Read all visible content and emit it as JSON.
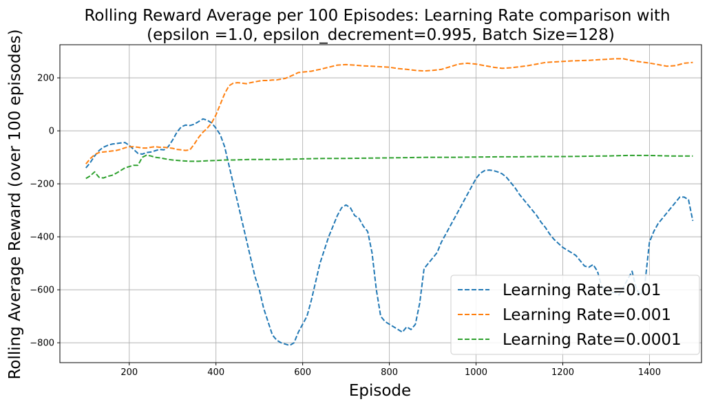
{
  "chart_data": {
    "type": "line",
    "title": "Rolling Reward Average per 100 Episodes: Learning Rate comparison with",
    "subtitle": "(epsilon =1.0, epsilon_decrement=0.995, Batch Size=128)",
    "xlabel": "Episode",
    "ylabel": "Rolling Average Reward (over 100 episodes)",
    "xlim": [
      40,
      1520
    ],
    "ylim": [
      -875,
      325
    ],
    "xticks": [
      200,
      400,
      600,
      800,
      1000,
      1200,
      1400
    ],
    "yticks": [
      -800,
      -600,
      -400,
      -200,
      0,
      200
    ],
    "ytick_labels": [
      "−800",
      "−600",
      "−400",
      "−200",
      "0",
      "200"
    ],
    "grid": true,
    "legend_position": "lower-right",
    "series": [
      {
        "name": "Learning Rate=0.01",
        "color": "#1f77b4",
        "x": [
          100,
          110,
          120,
          130,
          140,
          150,
          160,
          170,
          180,
          190,
          200,
          210,
          220,
          230,
          240,
          250,
          260,
          270,
          280,
          290,
          300,
          310,
          320,
          330,
          340,
          350,
          360,
          370,
          380,
          390,
          400,
          410,
          420,
          430,
          440,
          450,
          460,
          470,
          480,
          490,
          500,
          510,
          520,
          530,
          540,
          550,
          560,
          570,
          580,
          590,
          600,
          610,
          620,
          630,
          640,
          650,
          660,
          670,
          680,
          690,
          700,
          710,
          720,
          730,
          740,
          750,
          760,
          770,
          780,
          790,
          800,
          810,
          820,
          830,
          840,
          850,
          860,
          870,
          880,
          890,
          900,
          910,
          920,
          930,
          940,
          950,
          960,
          970,
          980,
          990,
          1000,
          1010,
          1020,
          1030,
          1040,
          1050,
          1060,
          1070,
          1080,
          1090,
          1100,
          1110,
          1120,
          1130,
          1140,
          1150,
          1160,
          1170,
          1180,
          1190,
          1200,
          1210,
          1220,
          1230,
          1240,
          1250,
          1260,
          1270,
          1280,
          1290,
          1300,
          1310,
          1320,
          1330,
          1340,
          1350,
          1360,
          1370,
          1380,
          1390,
          1400,
          1410,
          1420,
          1430,
          1440,
          1450,
          1460,
          1470,
          1480,
          1490,
          1500
        ],
        "y": [
          -140,
          -120,
          -95,
          -75,
          -62,
          -55,
          -50,
          -48,
          -46,
          -44,
          -55,
          -70,
          -85,
          -88,
          -82,
          -80,
          -75,
          -70,
          -72,
          -60,
          -35,
          -5,
          15,
          22,
          20,
          25,
          35,
          45,
          40,
          30,
          10,
          -15,
          -60,
          -130,
          -200,
          -270,
          -340,
          -410,
          -480,
          -550,
          -600,
          -670,
          -720,
          -770,
          -790,
          -800,
          -805,
          -810,
          -800,
          -760,
          -730,
          -700,
          -640,
          -570,
          -500,
          -450,
          -400,
          -360,
          -320,
          -290,
          -280,
          -290,
          -320,
          -330,
          -360,
          -380,
          -460,
          -600,
          -700,
          -720,
          -730,
          -740,
          -750,
          -760,
          -740,
          -750,
          -730,
          -650,
          -520,
          -500,
          -480,
          -460,
          -420,
          -390,
          -360,
          -330,
          -300,
          -270,
          -240,
          -210,
          -180,
          -160,
          -150,
          -148,
          -150,
          -155,
          -162,
          -175,
          -195,
          -215,
          -240,
          -260,
          -280,
          -300,
          -320,
          -345,
          -365,
          -390,
          -410,
          -425,
          -440,
          -450,
          -460,
          -470,
          -490,
          -510,
          -515,
          -505,
          -530,
          -590,
          -600,
          -610,
          -610,
          -620,
          -590,
          -560,
          -530,
          -600,
          -620,
          -570,
          -420,
          -380,
          -350,
          -330,
          -310,
          -290,
          -270,
          -250,
          -250,
          -260,
          -340
        ]
      },
      {
        "name": "Learning Rate=0.001",
        "color": "#ff7f0e",
        "x": [
          100,
          110,
          120,
          130,
          140,
          150,
          160,
          170,
          180,
          190,
          200,
          210,
          220,
          230,
          240,
          250,
          260,
          270,
          280,
          290,
          300,
          310,
          320,
          330,
          340,
          350,
          360,
          370,
          380,
          390,
          400,
          410,
          420,
          430,
          440,
          450,
          460,
          470,
          480,
          490,
          500,
          510,
          520,
          530,
          540,
          550,
          560,
          570,
          580,
          590,
          600,
          620,
          640,
          660,
          680,
          700,
          720,
          740,
          760,
          780,
          800,
          820,
          840,
          860,
          880,
          900,
          920,
          940,
          960,
          980,
          1000,
          1020,
          1040,
          1060,
          1080,
          1100,
          1120,
          1140,
          1160,
          1180,
          1200,
          1220,
          1240,
          1260,
          1280,
          1300,
          1320,
          1340,
          1360,
          1380,
          1400,
          1420,
          1440,
          1460,
          1480,
          1500
        ],
        "y": [
          -125,
          -105,
          -90,
          -82,
          -80,
          -78,
          -76,
          -74,
          -70,
          -64,
          -60,
          -60,
          -62,
          -65,
          -65,
          -62,
          -60,
          -62,
          -62,
          -64,
          -66,
          -70,
          -72,
          -74,
          -72,
          -50,
          -25,
          -5,
          10,
          30,
          60,
          100,
          140,
          170,
          180,
          182,
          180,
          178,
          182,
          185,
          188,
          190,
          190,
          192,
          192,
          195,
          198,
          205,
          212,
          220,
          222,
          225,
          232,
          240,
          248,
          250,
          248,
          245,
          244,
          242,
          240,
          235,
          232,
          228,
          226,
          228,
          232,
          242,
          252,
          255,
          252,
          246,
          240,
          236,
          238,
          242,
          246,
          252,
          258,
          260,
          262,
          264,
          265,
          266,
          268,
          270,
          272,
          272,
          265,
          260,
          256,
          250,
          244,
          246,
          255,
          258
        ]
      },
      {
        "name": "Learning Rate=0.0001",
        "color": "#2ca02c",
        "x": [
          100,
          110,
          120,
          130,
          140,
          150,
          160,
          170,
          180,
          190,
          200,
          210,
          220,
          230,
          240,
          250,
          260,
          270,
          280,
          290,
          300,
          320,
          340,
          360,
          380,
          400,
          420,
          440,
          460,
          480,
          500,
          550,
          600,
          650,
          700,
          750,
          800,
          850,
          900,
          950,
          1000,
          1050,
          1100,
          1150,
          1200,
          1250,
          1300,
          1350,
          1400,
          1450,
          1500
        ],
        "y": [
          -180,
          -170,
          -155,
          -175,
          -178,
          -172,
          -168,
          -160,
          -150,
          -140,
          -135,
          -130,
          -130,
          -100,
          -92,
          -95,
          -100,
          -102,
          -105,
          -108,
          -110,
          -113,
          -115,
          -115,
          -113,
          -112,
          -110,
          -110,
          -109,
          -108,
          -108,
          -108,
          -106,
          -104,
          -104,
          -103,
          -102,
          -101,
          -100,
          -100,
          -99,
          -98,
          -98,
          -97,
          -97,
          -96,
          -95,
          -93,
          -93,
          -95,
          -95
        ]
      }
    ]
  }
}
